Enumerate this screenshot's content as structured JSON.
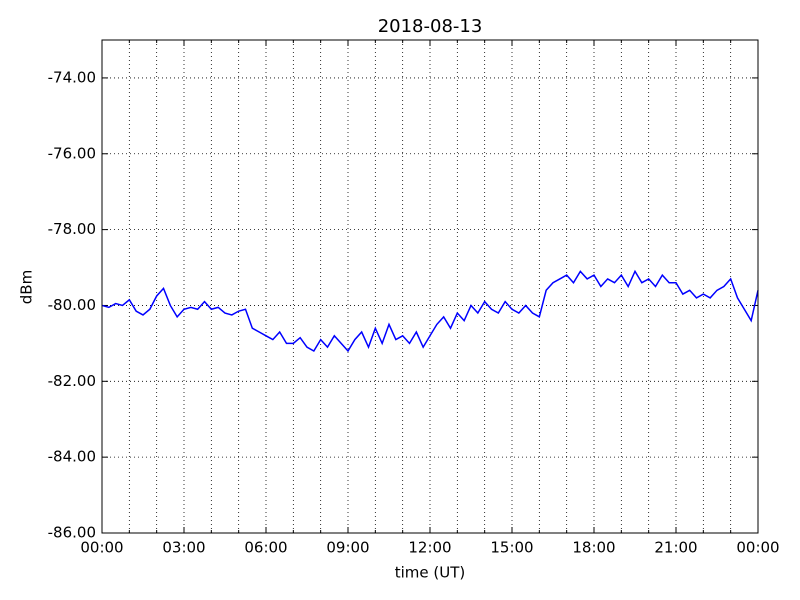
{
  "chart_data": {
    "type": "line",
    "title": "2018-08-13",
    "xlabel": "time (UT)",
    "ylabel": "dBm",
    "x": [
      0,
      0.25,
      0.5,
      0.75,
      1,
      1.25,
      1.5,
      1.75,
      2,
      2.25,
      2.5,
      2.75,
      3,
      3.25,
      3.5,
      3.75,
      4,
      4.25,
      4.5,
      4.75,
      5,
      5.25,
      5.5,
      5.75,
      6,
      6.25,
      6.5,
      6.75,
      7,
      7.25,
      7.5,
      7.75,
      8,
      8.25,
      8.5,
      8.75,
      9,
      9.25,
      9.5,
      9.75,
      10,
      10.25,
      10.5,
      10.75,
      11,
      11.25,
      11.5,
      11.75,
      12,
      12.25,
      12.5,
      12.75,
      13,
      13.25,
      13.5,
      13.75,
      14,
      14.25,
      14.5,
      14.75,
      15,
      15.25,
      15.5,
      15.75,
      16,
      16.25,
      16.5,
      16.75,
      17,
      17.25,
      17.5,
      17.75,
      18,
      18.25,
      18.5,
      18.75,
      19,
      19.25,
      19.5,
      19.75,
      20,
      20.25,
      20.5,
      20.75,
      21,
      21.25,
      21.5,
      21.75,
      22,
      22.25,
      22.5,
      22.75,
      23,
      23.25,
      23.5,
      23.75,
      24
    ],
    "series": [
      {
        "name": "dBm",
        "color": "#0000ff",
        "values": [
          -80.0,
          -80.05,
          -79.95,
          -80.0,
          -79.85,
          -80.15,
          -80.25,
          -80.1,
          -79.75,
          -79.55,
          -80.0,
          -80.3,
          -80.1,
          -80.05,
          -80.1,
          -79.9,
          -80.1,
          -80.05,
          -80.2,
          -80.25,
          -80.15,
          -80.1,
          -80.6,
          -80.7,
          -80.8,
          -80.9,
          -80.7,
          -81.0,
          -81.0,
          -80.85,
          -81.1,
          -81.2,
          -80.9,
          -81.1,
          -80.8,
          -81.0,
          -81.2,
          -80.9,
          -80.7,
          -81.1,
          -80.6,
          -81.0,
          -80.5,
          -80.9,
          -80.8,
          -81.0,
          -80.7,
          -81.1,
          -80.8,
          -80.5,
          -80.3,
          -80.6,
          -80.2,
          -80.4,
          -80.0,
          -80.2,
          -79.9,
          -80.1,
          -80.2,
          -79.9,
          -80.1,
          -80.2,
          -80.0,
          -80.2,
          -80.3,
          -79.6,
          -79.4,
          -79.3,
          -79.2,
          -79.4,
          -79.1,
          -79.3,
          -79.2,
          -79.5,
          -79.3,
          -79.4,
          -79.2,
          -79.5,
          -79.1,
          -79.4,
          -79.3,
          -79.5,
          -79.2,
          -79.4,
          -79.4,
          -79.7,
          -79.6,
          -79.8,
          -79.7,
          -79.8,
          -79.6,
          -79.5,
          -79.3,
          -79.8,
          -80.1,
          -80.4,
          -79.6
        ]
      }
    ],
    "xlim": [
      0,
      24
    ],
    "xticks": [
      {
        "value": 0,
        "label": "00:00"
      },
      {
        "value": 3,
        "label": "03:00"
      },
      {
        "value": 6,
        "label": "06:00"
      },
      {
        "value": 9,
        "label": "09:00"
      },
      {
        "value": 12,
        "label": "12:00"
      },
      {
        "value": 15,
        "label": "15:00"
      },
      {
        "value": 18,
        "label": "18:00"
      },
      {
        "value": 21,
        "label": "21:00"
      },
      {
        "value": 24,
        "label": "00:00"
      }
    ],
    "xminorticks": [
      1,
      2,
      4,
      5,
      7,
      8,
      10,
      11,
      13,
      14,
      16,
      17,
      19,
      20,
      22,
      23
    ],
    "ylim": [
      -86,
      -73
    ],
    "yticks": [
      {
        "value": -86,
        "label": "-86.00"
      },
      {
        "value": -84,
        "label": "-84.00"
      },
      {
        "value": -82,
        "label": "-82.00"
      },
      {
        "value": -80,
        "label": "-80.00"
      },
      {
        "value": -78,
        "label": "-78.00"
      },
      {
        "value": -76,
        "label": "-76.00"
      },
      {
        "value": -74,
        "label": "-74.00"
      }
    ],
    "grid": true
  }
}
